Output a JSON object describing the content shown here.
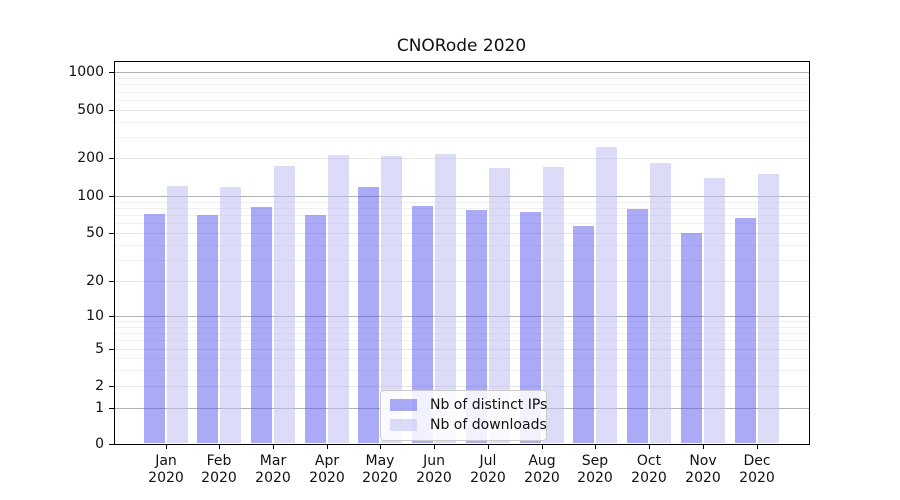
{
  "title": "CNORode 2020",
  "chart_data": {
    "type": "bar",
    "title": "CNORode 2020",
    "categories": [
      "Jan 2020",
      "Feb 2020",
      "Mar 2020",
      "Apr 2020",
      "May 2020",
      "Jun 2020",
      "Jul 2020",
      "Aug 2020",
      "Sep 2020",
      "Oct 2020",
      "Nov 2020",
      "Dec 2020"
    ],
    "series": [
      {
        "name": "Nb of distinct IPs",
        "color": "rgba(85,85,238,0.5)",
        "values": [
          72,
          70,
          82,
          70,
          118,
          83,
          77,
          74,
          57,
          78,
          50,
          66
        ]
      },
      {
        "name": "Nb of downloads",
        "color": "rgba(185,185,243,0.5)",
        "values": [
          119,
          117,
          174,
          210,
          207,
          214,
          168,
          171,
          245,
          181,
          139,
          150
        ]
      }
    ],
    "yscale": "symlog",
    "ytick_values": [
      0,
      1,
      2,
      5,
      10,
      20,
      50,
      100,
      200,
      500,
      1000
    ],
    "ytick_labels": [
      "0",
      "1",
      "2",
      "5",
      "10",
      "20",
      "50",
      "100",
      "200",
      "500",
      "1000"
    ],
    "xlabel": "",
    "ylabel": "",
    "grid": true,
    "legend_position": "lower center",
    "colors": {
      "grid_major": "#b2b2b2",
      "grid_light": "#e5e5e5",
      "grid_minor": "#f0f0f0",
      "spine": "#000000"
    }
  }
}
